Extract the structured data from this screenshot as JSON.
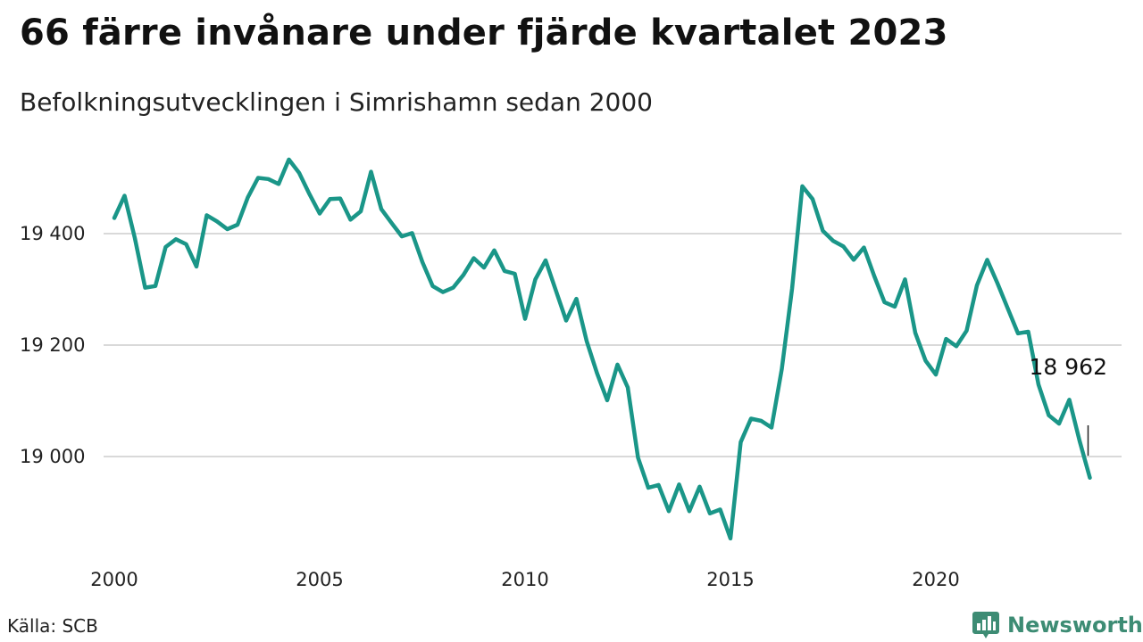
{
  "title": "66 färre invånare under fjärde kvartalet 2023",
  "subtitle": "Befolkningsutvecklingen i Simrishamn sedan 2000",
  "source": "Källa: SCB",
  "brand": {
    "name": "Newsworthy",
    "color": "#3d8c74"
  },
  "colors": {
    "line": "#1a9688",
    "grid": "#d9d9d9"
  },
  "chart_data": {
    "type": "line",
    "title": "66 färre invånare under fjärde kvartalet 2023",
    "subtitle": "Befolkningsutvecklingen i Simrishamn sedan 2000",
    "xlabel": "",
    "ylabel": "",
    "x_ticks": [
      2000,
      2005,
      2010,
      2015,
      2020
    ],
    "y_ticks": [
      {
        "value": 19000,
        "label": "19 000"
      },
      {
        "value": 19200,
        "label": "19 200"
      },
      {
        "value": 19400,
        "label": "19 400"
      }
    ],
    "xlim": [
      2000,
      2023.75
    ],
    "ylim": [
      18800,
      19600
    ],
    "grid": "horizontal",
    "series": [
      {
        "x_start_year": 2000,
        "x_step_years": 0.25,
        "values": [
          19428,
          19468,
          19392,
          19303,
          19306,
          19376,
          19390,
          19381,
          19341,
          19433,
          19422,
          19408,
          19416,
          19465,
          19500,
          19498,
          19489,
          19533,
          19509,
          19471,
          19436,
          19462,
          19463,
          19425,
          19440,
          19511,
          19444,
          19419,
          19395,
          19401,
          19349,
          19306,
          19295,
          19303,
          19326,
          19356,
          19339,
          19370,
          19333,
          19328,
          19247,
          19318,
          19352,
          19298,
          19244,
          19283,
          19207,
          19150,
          19101,
          19165,
          19124,
          18998,
          18944,
          18949,
          18902,
          18950,
          18902,
          18946,
          18898,
          18905,
          18853,
          19026,
          19068,
          19064,
          19052,
          19157,
          19301,
          19485,
          19462,
          19405,
          19387,
          19377,
          19353,
          19375,
          19324,
          19277,
          19269,
          19318,
          19222,
          19172,
          19147,
          19211,
          19198,
          19226,
          19307,
          19353,
          19311,
          19266,
          19221,
          19224,
          19129,
          19074,
          19059,
          19102,
          19028,
          18962
        ]
      }
    ],
    "annotation": {
      "label": "18 962",
      "value": 18962,
      "x": 2023.75
    }
  }
}
